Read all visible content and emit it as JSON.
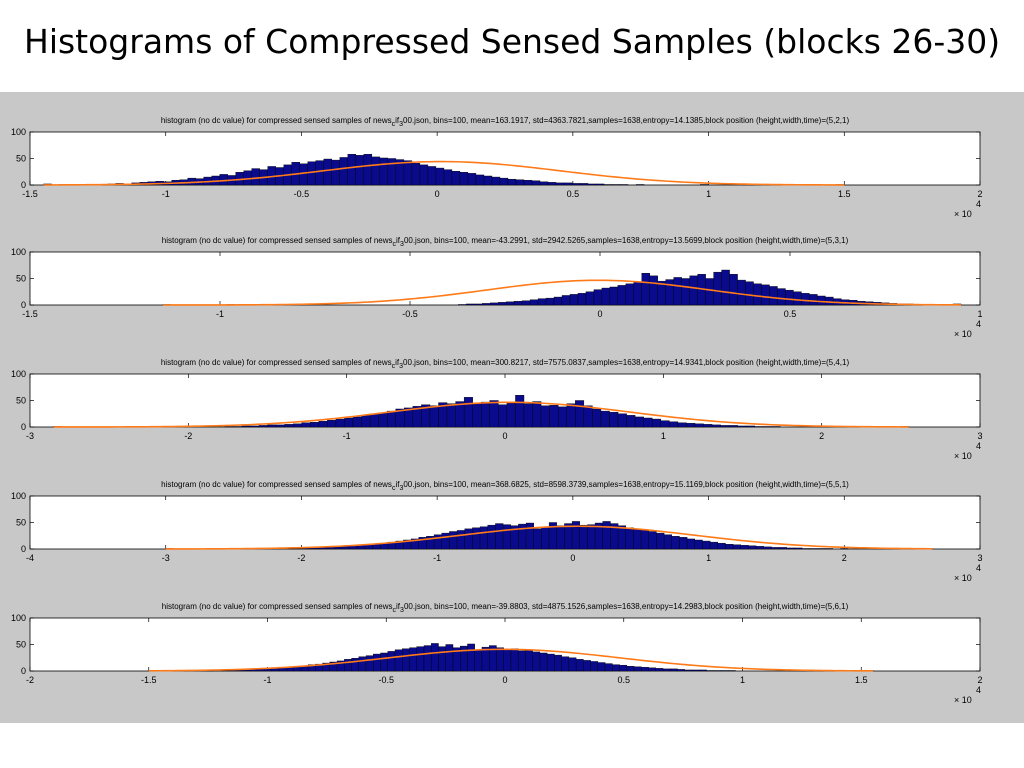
{
  "slide": {
    "title": "Histograms of Compressed Sensed Samples (blocks 26-30)"
  },
  "colors": {
    "bar_fill": "#0a0a8c",
    "bar_stroke": "#000000",
    "fit_line": "#ff7a18",
    "axes_bg": "#ffffff",
    "panel_bg": "#c8c8c8"
  },
  "chart_data": [
    {
      "type": "bar",
      "title": "histogram (no dc value) for compressed sensed samples of news_cif_300.json, bins=100, mean=163.1917, std=4363.7821,samples=1638,entropy=14.1385,block position (height,width,time)=(5,2,1)",
      "title_parts": {
        "pre": "histogram (no dc value) for compressed sensed samples of news",
        "sub1": "c",
        "mid": "if",
        "sub2": "3",
        "post": "00.json, bins=100, mean=163.1917, std=4363.7821,samples=1638,entropy=14.1385,block position (height,width,time)=(5,2,1)"
      },
      "xlim": [
        -15000,
        20000
      ],
      "ylim": [
        0,
        100
      ],
      "xticks": [
        -15000,
        -10000,
        -5000,
        0,
        5000,
        10000,
        15000,
        20000
      ],
      "xtick_labels": [
        "-1.5",
        "-1",
        "-0.5",
        "0",
        "0.5",
        "1",
        "1.5",
        "2"
      ],
      "yticks": [
        0,
        50,
        100
      ],
      "ytick_labels": [
        "0",
        "50",
        "100"
      ],
      "x_multiplier": "× 10",
      "x_exponent": "4",
      "mean": 163.1917,
      "std": 4363.7821,
      "samples": 1638,
      "bins": 100,
      "data_range": [
        -14500,
        15000
      ],
      "bar_heights": [
        2,
        0,
        1,
        0,
        0,
        1,
        0,
        1,
        2,
        3,
        2,
        4,
        5,
        6,
        7,
        6,
        9,
        10,
        13,
        12,
        15,
        17,
        20,
        18,
        24,
        27,
        31,
        29,
        35,
        33,
        38,
        43,
        40,
        44,
        46,
        49,
        47,
        52,
        58,
        56,
        58,
        53,
        51,
        50,
        48,
        46,
        41,
        38,
        35,
        32,
        29,
        26,
        24,
        22,
        19,
        17,
        15,
        13,
        11,
        10,
        9,
        8,
        6,
        5,
        4,
        4,
        3,
        3,
        2,
        2,
        1,
        1,
        1,
        0,
        1,
        0,
        0,
        0,
        0,
        0,
        0,
        0,
        1,
        0,
        0,
        0,
        0,
        0,
        0,
        0,
        0,
        0,
        0,
        0,
        0,
        0,
        0,
        0,
        0,
        1
      ]
    },
    {
      "type": "bar",
      "title": "histogram (no dc value) for compressed sensed samples of news_cif_300.json, bins=100, mean=-43.2991, std=2942.5265,samples=1638,entropy=13.5699,block position (height,width,time)=(5,3,1)",
      "title_parts": {
        "pre": "histogram (no dc value) for compressed sensed samples of news",
        "sub1": "c",
        "mid": "if",
        "sub2": "3",
        "post": "00.json, bins=100, mean=-43.2991, std=2942.5265,samples=1638,entropy=13.5699,block position (height,width,time)=(5,3,1)"
      },
      "xlim": [
        -15000,
        10000
      ],
      "ylim": [
        0,
        100
      ],
      "xticks": [
        -15000,
        -10000,
        -5000,
        0,
        5000,
        10000
      ],
      "xtick_labels": [
        "-1.5",
        "-1",
        "-0.5",
        "0",
        "0.5",
        "1"
      ],
      "yticks": [
        0,
        50,
        100
      ],
      "ytick_labels": [
        "0",
        "50",
        "100"
      ],
      "x_multiplier": "× 10",
      "x_exponent": "4",
      "mean": -43.2991,
      "std": 2942.5265,
      "samples": 1638,
      "bins": 100,
      "data_range": [
        -11500,
        9500
      ],
      "bar_heights": [
        1,
        0,
        0,
        0,
        0,
        0,
        0,
        0,
        1,
        0,
        0,
        0,
        0,
        0,
        0,
        0,
        0,
        0,
        0,
        0,
        0,
        0,
        0,
        0,
        0,
        0,
        0,
        0,
        0,
        0,
        0,
        0,
        0,
        0,
        0,
        0,
        0,
        1,
        2,
        2,
        3,
        4,
        5,
        6,
        7,
        8,
        10,
        12,
        13,
        15,
        18,
        20,
        22,
        25,
        29,
        32,
        34,
        37,
        40,
        43,
        60,
        55,
        45,
        48,
        52,
        50,
        55,
        58,
        50,
        62,
        66,
        58,
        47,
        44,
        40,
        38,
        35,
        31,
        28,
        25,
        22,
        20,
        17,
        15,
        12,
        10,
        9,
        7,
        6,
        5,
        4,
        3,
        2,
        2,
        1,
        1,
        1,
        0,
        1,
        2
      ]
    },
    {
      "type": "bar",
      "title": "histogram (no dc value) for compressed sensed samples of news_cif_300.json, bins=100, mean=300.8217, std=7575.0837,samples=1638,entropy=14.9341,block position (height,width,time)=(5,4,1)",
      "title_parts": {
        "pre": "histogram (no dc value) for compressed sensed samples of news",
        "sub1": "c",
        "mid": "if",
        "sub2": "3",
        "post": "00.json, bins=100, mean=300.8217, std=7575.0837,samples=1638,entropy=14.9341,block position (height,width,time)=(5,4,1)"
      },
      "xlim": [
        -30000,
        30000
      ],
      "ylim": [
        0,
        100
      ],
      "xticks": [
        -30000,
        -20000,
        -10000,
        0,
        10000,
        20000,
        30000
      ],
      "xtick_labels": [
        "-3",
        "-2",
        "-1",
        "0",
        "1",
        "2",
        "3"
      ],
      "yticks": [
        0,
        50,
        100
      ],
      "ytick_labels": [
        "0",
        "50",
        "100"
      ],
      "x_multiplier": "× 10",
      "x_exponent": "4",
      "mean": 300.8217,
      "std": 7575.0837,
      "samples": 1638,
      "bins": 100,
      "data_range": [
        -28500,
        25500
      ],
      "bar_heights": [
        1,
        0,
        0,
        0,
        0,
        0,
        0,
        0,
        0,
        0,
        0,
        0,
        0,
        0,
        0,
        0,
        0,
        0,
        0,
        0,
        1,
        1,
        2,
        2,
        3,
        4,
        4,
        5,
        6,
        8,
        9,
        11,
        13,
        15,
        17,
        19,
        22,
        25,
        27,
        30,
        34,
        36,
        39,
        42,
        40,
        46,
        44,
        48,
        56,
        44,
        47,
        50,
        42,
        45,
        60,
        44,
        48,
        40,
        41,
        38,
        44,
        50,
        40,
        34,
        30,
        28,
        25,
        22,
        19,
        17,
        15,
        12,
        10,
        8,
        7,
        6,
        5,
        4,
        3,
        3,
        2,
        2,
        1,
        1,
        1,
        0,
        0,
        0,
        0,
        0,
        0,
        0,
        0,
        0,
        0,
        0,
        0,
        0,
        0,
        1
      ]
    },
    {
      "type": "bar",
      "title": "histogram (no dc value) for compressed sensed samples of news_cif_300.json, bins=100, mean=368.6825, std=8598.3739,samples=1638,entropy=15.1169,block position (height,width,time)=(5,5,1)",
      "title_parts": {
        "pre": "histogram (no dc value) for compressed sensed samples of news",
        "sub1": "c",
        "mid": "if",
        "sub2": "3",
        "post": "00.json, bins=100, mean=368.6825, std=8598.3739,samples=1638,entropy=15.1169,block position (height,width,time)=(5,5,1)"
      },
      "xlim": [
        -40000,
        30000
      ],
      "ylim": [
        0,
        100
      ],
      "xticks": [
        -40000,
        -30000,
        -20000,
        -10000,
        0,
        10000,
        20000,
        30000
      ],
      "xtick_labels": [
        "-4",
        "-3",
        "-2",
        "-1",
        "0",
        "1",
        "2",
        "3"
      ],
      "yticks": [
        0,
        50,
        100
      ],
      "ytick_labels": [
        "0",
        "50",
        "100"
      ],
      "x_multiplier": "× 10",
      "x_exponent": "4",
      "mean": 368.6825,
      "std": 8598.3739,
      "samples": 1638,
      "bins": 100,
      "data_range": [
        -30000,
        26500
      ],
      "bar_heights": [
        1,
        0,
        0,
        0,
        0,
        0,
        0,
        0,
        0,
        0,
        0,
        0,
        0,
        0,
        0,
        0,
        1,
        1,
        2,
        2,
        3,
        3,
        4,
        5,
        6,
        7,
        8,
        10,
        11,
        13,
        15,
        17,
        19,
        22,
        24,
        27,
        30,
        33,
        35,
        38,
        40,
        42,
        45,
        48,
        46,
        44,
        47,
        49,
        38,
        42,
        50,
        44,
        48,
        52,
        45,
        46,
        49,
        52,
        48,
        44,
        40,
        38,
        35,
        33,
        30,
        27,
        24,
        22,
        19,
        17,
        15,
        13,
        11,
        9,
        8,
        7,
        6,
        5,
        4,
        3,
        3,
        2,
        2,
        1,
        1,
        1,
        1,
        0,
        1,
        0,
        0,
        0,
        0,
        0,
        0,
        0,
        0,
        0,
        0,
        1
      ]
    },
    {
      "type": "bar",
      "title": "histogram (no dc value) for compressed sensed samples of news_cif_300.json, bins=100, mean=-39.8803, std=4875.1526,samples=1638,entropy=14.2983,block position (height,width,time)=(5,6,1)",
      "title_parts": {
        "pre": "histogram (no dc value) for compressed sensed samples of news",
        "sub1": "c",
        "mid": "if",
        "sub2": "3",
        "post": "00.json, bins=100, mean=-39.8803, std=4875.1526,samples=1638,entropy=14.2983,block position (height,width,time)=(5,6,1)"
      },
      "xlim": [
        -20000,
        20000
      ],
      "ylim": [
        0,
        100
      ],
      "xticks": [
        -20000,
        -15000,
        -10000,
        -5000,
        0,
        5000,
        10000,
        15000,
        20000
      ],
      "xtick_labels": [
        "-2",
        "-1.5",
        "-1",
        "-0.5",
        "0",
        "0.5",
        "1",
        "1.5",
        "2"
      ],
      "yticks": [
        0,
        50,
        100
      ],
      "ytick_labels": [
        "0",
        "50",
        "100"
      ],
      "x_multiplier": "× 10",
      "x_exponent": "4",
      "mean": -39.8803,
      "std": 4875.1526,
      "samples": 1638,
      "bins": 100,
      "data_range": [
        -15000,
        15500
      ],
      "bar_heights": [
        1,
        0,
        0,
        0,
        0,
        0,
        0,
        0,
        1,
        0,
        1,
        1,
        2,
        2,
        3,
        4,
        4,
        5,
        6,
        7,
        9,
        10,
        12,
        13,
        15,
        17,
        19,
        22,
        24,
        27,
        29,
        32,
        34,
        37,
        40,
        42,
        44,
        46,
        48,
        52,
        46,
        50,
        44,
        47,
        51,
        40,
        45,
        48,
        44,
        40,
        42,
        38,
        40,
        36,
        34,
        32,
        30,
        27,
        25,
        22,
        20,
        18,
        16,
        14,
        12,
        11,
        9,
        8,
        7,
        6,
        5,
        4,
        4,
        3,
        2,
        2,
        2,
        1,
        1,
        1,
        1,
        0,
        0,
        0,
        0,
        0,
        0,
        0,
        0,
        0,
        0,
        0,
        0,
        0,
        0,
        0,
        0,
        0,
        0,
        1
      ]
    }
  ]
}
